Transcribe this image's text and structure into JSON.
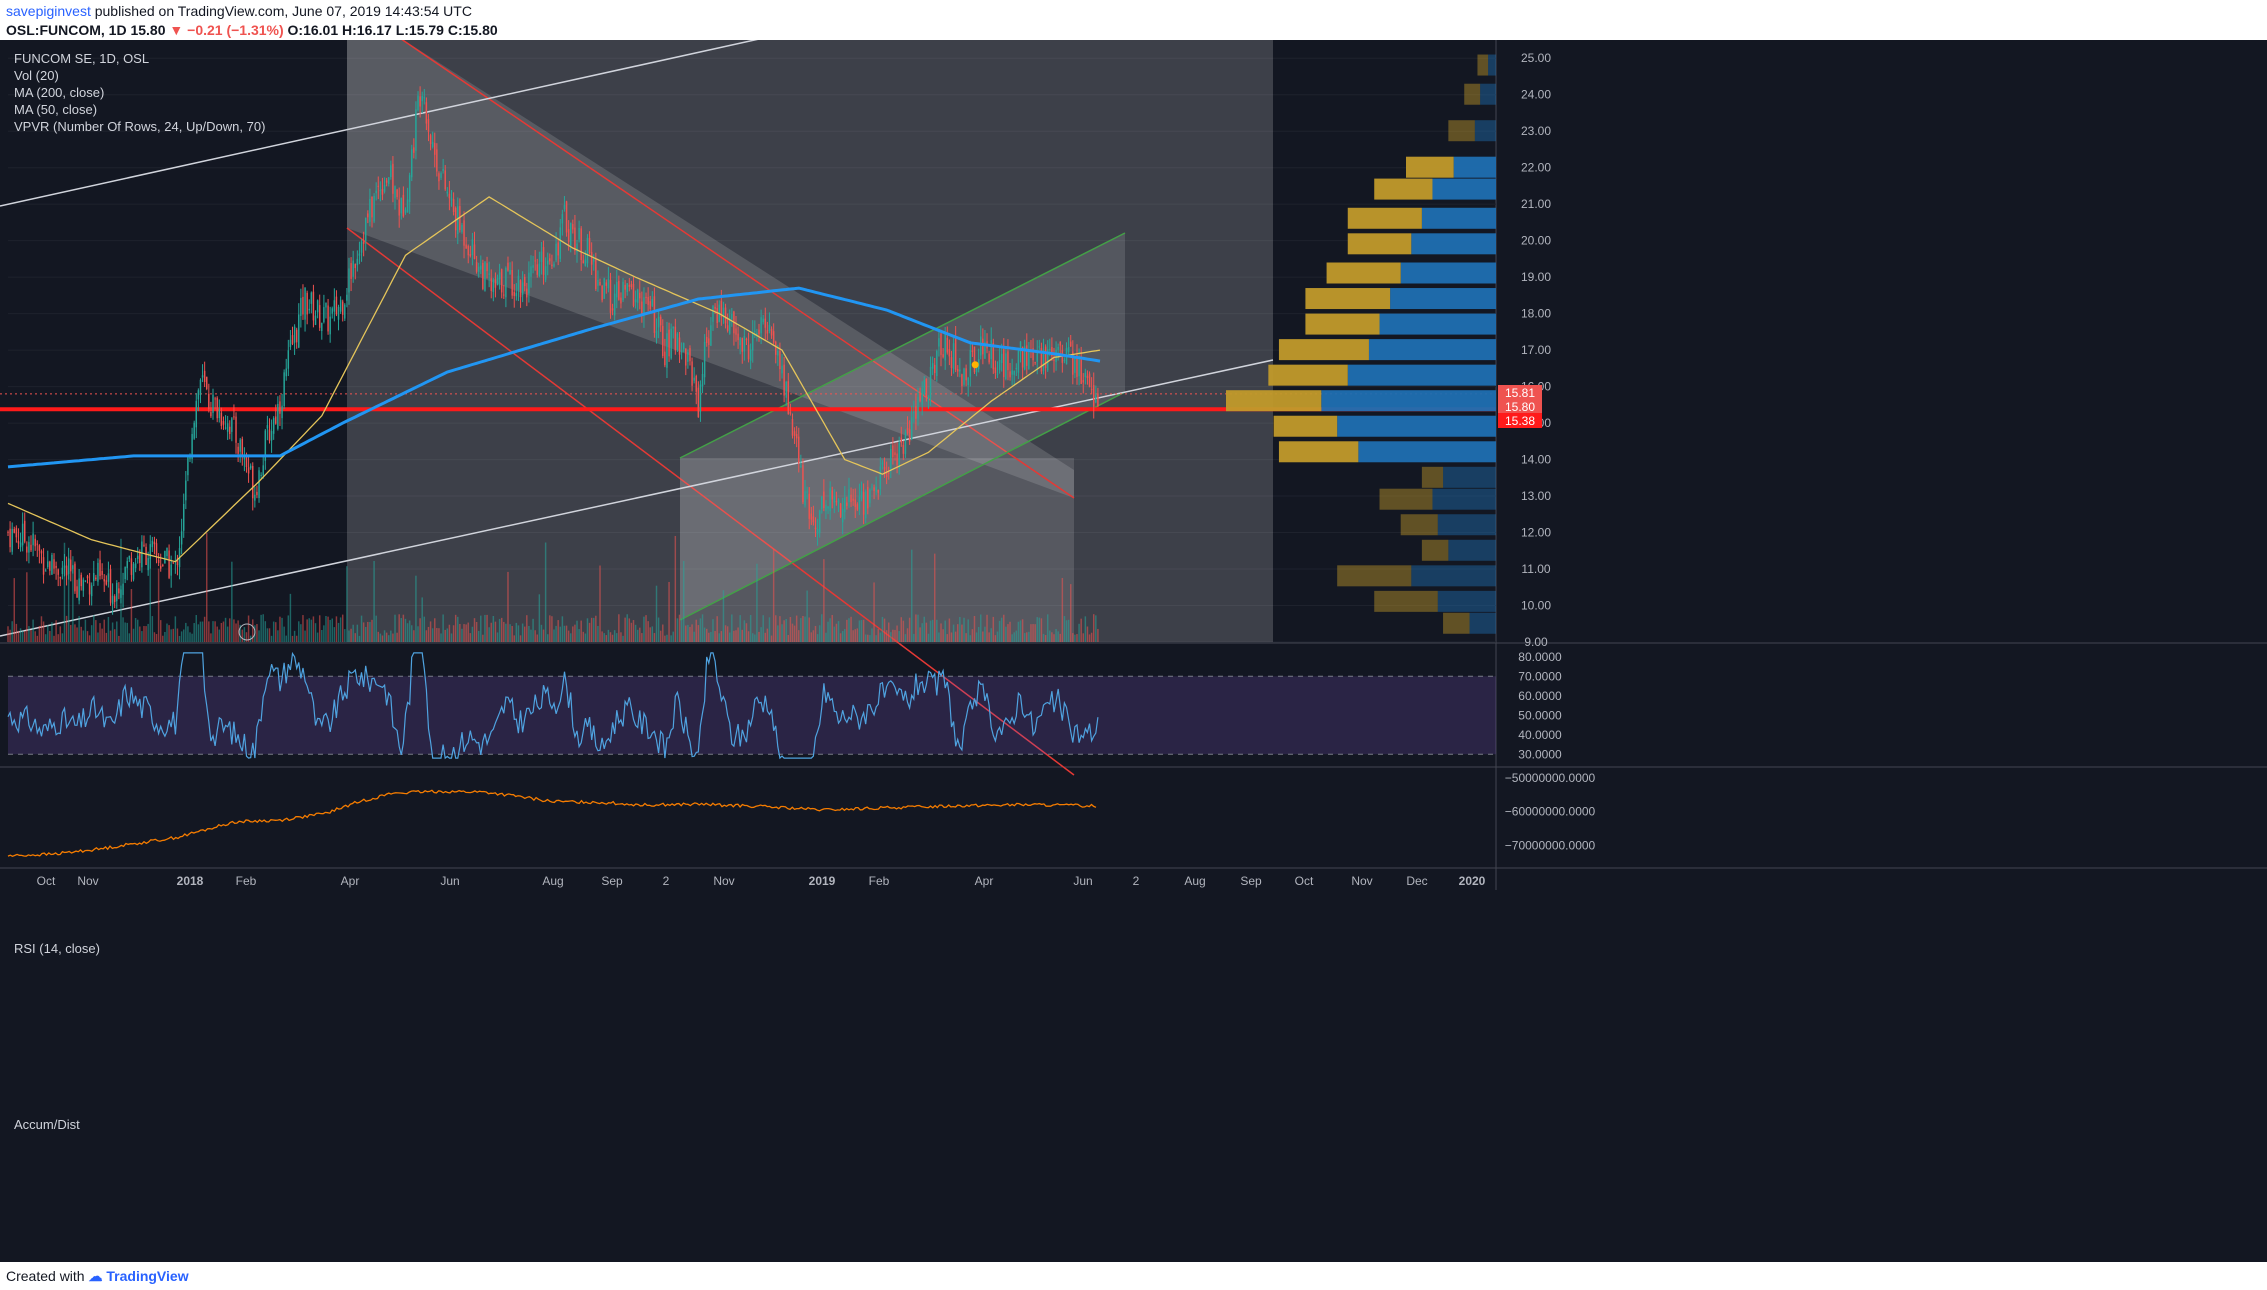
{
  "header": {
    "user": "savepiginvest",
    "published": "published on TradingView.com, June 07, 2019 14:43:54 UTC",
    "symbol": "OSL:FUNCOM, 1D",
    "last": "15.80",
    "change": "−0.21 (−1.31%)",
    "ohlc": "O:16.01 H:16.17 L:15.79 C:15.80"
  },
  "legend": {
    "title": "FUNCOM SE, 1D, OSL",
    "vol": "Vol (20)",
    "ma200": "MA (200, close)",
    "ma50": "MA (50, close)",
    "vpvr": "VPVR (Number Of Rows, 24, Up/Down, 70)"
  },
  "rsi_label": "RSI (14, close)",
  "ad_label": "Accum/Dist",
  "footer": {
    "created": "Created with",
    "brand": "TradingView"
  },
  "colors": {
    "up": "#26a69a",
    "down": "#ef5350",
    "ma200": "#2196f3",
    "ma50": "#e5c55a",
    "rsi": "#4fa3e0",
    "ad": "#f57c00",
    "support": "#ff1a1a",
    "vpvr_up": "#1f6fb2",
    "vpvr_down": "#c19a2b"
  },
  "chart_data": {
    "type": "candlestick",
    "symbol": "FUNCOM SE",
    "interval": "1D",
    "x_ticks": [
      "Oct",
      "Nov",
      "2018",
      "Feb",
      "Apr",
      "Jun",
      "Aug",
      "Sep",
      "2",
      "Nov",
      "2019",
      "Feb",
      "Apr",
      "Jun",
      "2",
      "Aug",
      "Sep",
      "Oct",
      "Nov",
      "Dec",
      "2020"
    ],
    "y_ticks": [
      "25.00",
      "24.00",
      "23.00",
      "22.00",
      "21.00",
      "20.00",
      "19.00",
      "18.00",
      "17.00",
      "16.00",
      "15.00",
      "14.00",
      "13.00",
      "12.00",
      "11.00",
      "10.00",
      "9.00"
    ],
    "ylim": [
      9.0,
      25.5
    ],
    "price_labels": [
      "15.81",
      "15.80",
      "15.38"
    ],
    "support_level": 15.38,
    "close_path": [
      {
        "i": 0,
        "c": 12.0
      },
      {
        "i": 10,
        "c": 11.8
      },
      {
        "i": 18,
        "c": 11.2
      },
      {
        "i": 26,
        "c": 11.0
      },
      {
        "i": 34,
        "c": 10.6
      },
      {
        "i": 42,
        "c": 10.8
      },
      {
        "i": 50,
        "c": 10.4
      },
      {
        "i": 58,
        "c": 11.2
      },
      {
        "i": 66,
        "c": 11.5
      },
      {
        "i": 74,
        "c": 11.2
      },
      {
        "i": 80,
        "c": 11.0
      },
      {
        "i": 84,
        "c": 12.6
      },
      {
        "i": 88,
        "c": 15.0
      },
      {
        "i": 92,
        "c": 16.2
      },
      {
        "i": 96,
        "c": 15.6
      },
      {
        "i": 100,
        "c": 15.4
      },
      {
        "i": 106,
        "c": 15.0
      },
      {
        "i": 112,
        "c": 14.2
      },
      {
        "i": 118,
        "c": 13.2
      },
      {
        "i": 124,
        "c": 14.6
      },
      {
        "i": 130,
        "c": 15.6
      },
      {
        "i": 136,
        "c": 17.2
      },
      {
        "i": 142,
        "c": 18.4
      },
      {
        "i": 148,
        "c": 18.0
      },
      {
        "i": 154,
        "c": 17.8
      },
      {
        "i": 160,
        "c": 18.4
      },
      {
        "i": 166,
        "c": 19.6
      },
      {
        "i": 172,
        "c": 20.6
      },
      {
        "i": 178,
        "c": 21.6
      },
      {
        "i": 182,
        "c": 21.8
      },
      {
        "i": 188,
        "c": 20.8
      },
      {
        "i": 192,
        "c": 21.8
      },
      {
        "i": 196,
        "c": 23.8
      },
      {
        "i": 198,
        "c": 24.4
      },
      {
        "i": 202,
        "c": 22.8
      },
      {
        "i": 208,
        "c": 21.6
      },
      {
        "i": 214,
        "c": 20.6
      },
      {
        "i": 220,
        "c": 20.0
      },
      {
        "i": 226,
        "c": 19.2
      },
      {
        "i": 232,
        "c": 18.6
      },
      {
        "i": 238,
        "c": 19.0
      },
      {
        "i": 244,
        "c": 18.8
      },
      {
        "i": 250,
        "c": 18.9
      },
      {
        "i": 256,
        "c": 19.4
      },
      {
        "i": 262,
        "c": 19.8
      },
      {
        "i": 266,
        "c": 20.6
      },
      {
        "i": 272,
        "c": 20.0
      },
      {
        "i": 278,
        "c": 19.6
      },
      {
        "i": 284,
        "c": 18.6
      },
      {
        "i": 290,
        "c": 18.4
      },
      {
        "i": 296,
        "c": 18.6
      },
      {
        "i": 302,
        "c": 18.4
      },
      {
        "i": 308,
        "c": 18.0
      },
      {
        "i": 314,
        "c": 17.0
      },
      {
        "i": 320,
        "c": 17.4
      },
      {
        "i": 326,
        "c": 16.6
      },
      {
        "i": 330,
        "c": 15.6
      },
      {
        "i": 334,
        "c": 17.4
      },
      {
        "i": 340,
        "c": 18.2
      },
      {
        "i": 346,
        "c": 17.6
      },
      {
        "i": 352,
        "c": 17.0
      },
      {
        "i": 358,
        "c": 17.4
      },
      {
        "i": 364,
        "c": 17.8
      },
      {
        "i": 368,
        "c": 16.8
      },
      {
        "i": 372,
        "c": 15.8
      },
      {
        "i": 376,
        "c": 14.6
      },
      {
        "i": 380,
        "c": 13.2
      },
      {
        "i": 384,
        "c": 12.2
      },
      {
        "i": 388,
        "c": 12.6
      },
      {
        "i": 392,
        "c": 13.0
      },
      {
        "i": 396,
        "c": 12.8
      },
      {
        "i": 400,
        "c": 12.9
      },
      {
        "i": 406,
        "c": 12.8
      },
      {
        "i": 412,
        "c": 13.0
      },
      {
        "i": 418,
        "c": 13.6
      },
      {
        "i": 424,
        "c": 14.2
      },
      {
        "i": 430,
        "c": 14.6
      },
      {
        "i": 436,
        "c": 15.6
      },
      {
        "i": 442,
        "c": 16.4
      },
      {
        "i": 448,
        "c": 17.4
      },
      {
        "i": 452,
        "c": 16.8
      },
      {
        "i": 456,
        "c": 16.2
      },
      {
        "i": 460,
        "c": 16.6
      },
      {
        "i": 466,
        "c": 17.2
      },
      {
        "i": 472,
        "c": 16.8
      },
      {
        "i": 478,
        "c": 16.4
      },
      {
        "i": 484,
        "c": 17.0
      },
      {
        "i": 490,
        "c": 16.6
      },
      {
        "i": 496,
        "c": 16.8
      },
      {
        "i": 502,
        "c": 17.2
      },
      {
        "i": 508,
        "c": 16.8
      },
      {
        "i": 514,
        "c": 16.2
      },
      {
        "i": 520,
        "c": 15.8
      }
    ],
    "ma200_path": [
      {
        "i": 0,
        "c": 13.8
      },
      {
        "i": 60,
        "c": 14.1
      },
      {
        "i": 130,
        "c": 14.1
      },
      {
        "i": 160,
        "c": 15.0
      },
      {
        "i": 210,
        "c": 16.4
      },
      {
        "i": 280,
        "c": 17.6
      },
      {
        "i": 330,
        "c": 18.4
      },
      {
        "i": 378,
        "c": 18.7
      },
      {
        "i": 420,
        "c": 18.1
      },
      {
        "i": 460,
        "c": 17.2
      },
      {
        "i": 500,
        "c": 16.9
      },
      {
        "i": 522,
        "c": 16.7
      }
    ],
    "ma50_path": [
      {
        "i": 0,
        "c": 12.8
      },
      {
        "i": 40,
        "c": 11.8
      },
      {
        "i": 80,
        "c": 11.2
      },
      {
        "i": 120,
        "c": 13.4
      },
      {
        "i": 150,
        "c": 15.2
      },
      {
        "i": 190,
        "c": 19.6
      },
      {
        "i": 230,
        "c": 21.2
      },
      {
        "i": 270,
        "c": 19.8
      },
      {
        "i": 300,
        "c": 19.0
      },
      {
        "i": 340,
        "c": 18.0
      },
      {
        "i": 370,
        "c": 17.0
      },
      {
        "i": 400,
        "c": 14.0
      },
      {
        "i": 418,
        "c": 13.6
      },
      {
        "i": 440,
        "c": 14.2
      },
      {
        "i": 470,
        "c": 15.6
      },
      {
        "i": 500,
        "c": 16.8
      },
      {
        "i": 522,
        "c": 17.0
      }
    ],
    "vpvr": [
      {
        "price": 24.8,
        "up": 15,
        "down": 20
      },
      {
        "price": 24.0,
        "up": 30,
        "down": 30
      },
      {
        "price": 23.0,
        "up": 40,
        "down": 50
      },
      {
        "price": 22.0,
        "up": 80,
        "down": 90
      },
      {
        "price": 21.4,
        "up": 120,
        "down": 110
      },
      {
        "price": 20.6,
        "up": 140,
        "down": 140
      },
      {
        "price": 19.9,
        "up": 160,
        "down": 120
      },
      {
        "price": 19.1,
        "up": 180,
        "down": 140
      },
      {
        "price": 18.4,
        "up": 200,
        "down": 160
      },
      {
        "price": 17.7,
        "up": 220,
        "down": 140
      },
      {
        "price": 17.0,
        "up": 240,
        "down": 170
      },
      {
        "price": 16.3,
        "up": 280,
        "down": 150
      },
      {
        "price": 15.6,
        "up": 330,
        "down": 180
      },
      {
        "price": 14.9,
        "up": 300,
        "down": 120
      },
      {
        "price": 14.2,
        "up": 260,
        "down": 150
      },
      {
        "price": 13.5,
        "up": 100,
        "down": 40
      },
      {
        "price": 12.9,
        "up": 120,
        "down": 100
      },
      {
        "price": 12.2,
        "up": 110,
        "down": 70
      },
      {
        "price": 11.5,
        "up": 90,
        "down": 50
      },
      {
        "price": 10.8,
        "up": 160,
        "down": 140
      },
      {
        "price": 10.1,
        "up": 110,
        "down": 120
      },
      {
        "price": 9.5,
        "up": 50,
        "down": 50
      }
    ],
    "rsi": {
      "label": "RSI (14, close)",
      "y_ticks": [
        "80.0000",
        "70.0000",
        "60.0000",
        "50.0000",
        "40.0000",
        "30.0000"
      ],
      "ylim": [
        25,
        85
      ],
      "bands": [
        30,
        70
      ]
    },
    "accum_dist": {
      "label": "Accum/Dist",
      "y_ticks": [
        "−50000000.0000",
        "−60000000.0000",
        "−70000000.0000"
      ],
      "path": [
        {
          "i": 0,
          "c": -73000000
        },
        {
          "i": 40,
          "c": -72500000
        },
        {
          "i": 80,
          "c": -71000000
        },
        {
          "i": 110,
          "c": -69500000
        },
        {
          "i": 150,
          "c": -67500000
        },
        {
          "i": 200,
          "c": -63000000
        },
        {
          "i": 240,
          "c": -62500000
        },
        {
          "i": 280,
          "c": -60500000
        },
        {
          "i": 310,
          "c": -57000000
        },
        {
          "i": 340,
          "c": -54500000
        },
        {
          "i": 380,
          "c": -54000000
        },
        {
          "i": 420,
          "c": -54200000
        },
        {
          "i": 450,
          "c": -55500000
        },
        {
          "i": 480,
          "c": -57000000
        },
        {
          "i": 520,
          "c": -57200000
        },
        {
          "i": 560,
          "c": -58000000
        },
        {
          "i": 610,
          "c": -57800000
        },
        {
          "i": 660,
          "c": -58400000
        },
        {
          "i": 720,
          "c": -59500000
        },
        {
          "i": 780,
          "c": -58800000
        },
        {
          "i": 840,
          "c": -58200000
        },
        {
          "i": 900,
          "c": -57900000
        },
        {
          "i": 960,
          "c": -58300000
        }
      ]
    }
  }
}
